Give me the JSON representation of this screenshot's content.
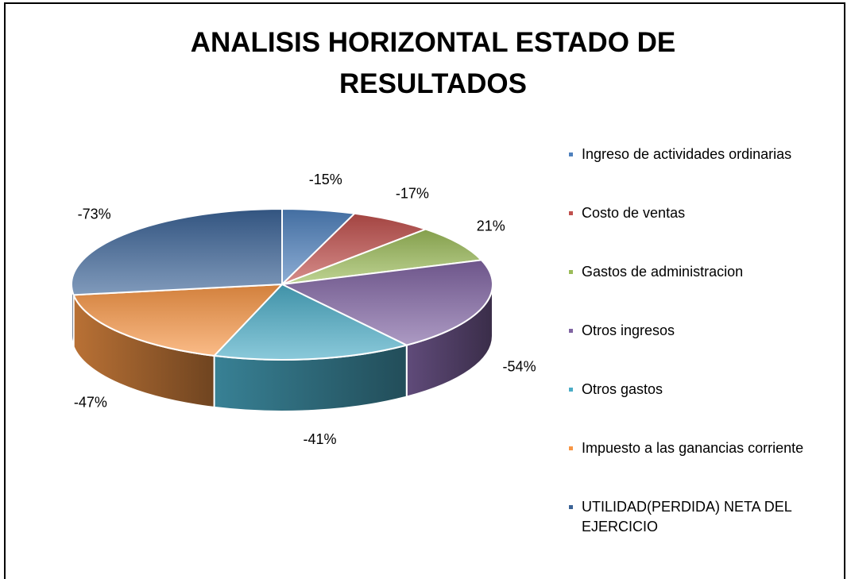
{
  "chart_data": {
    "type": "pie3d",
    "title": "ANALISIS HORIZONTAL ESTADO DE RESULTADOS",
    "categories": [
      "Ingreso de actividades ordinarias",
      "Costo de ventas",
      "Gastos de administracion",
      "Otros ingresos",
      "Otros gastos",
      "Impuesto a las ganancias corriente",
      "UTILIDAD(PERDIDA) NETA DEL EJERCICIO"
    ],
    "values": [
      -15,
      -17,
      21,
      -54,
      -41,
      -47,
      -73
    ],
    "value_labels": [
      "-15%",
      "-17%",
      "21%",
      "-54%",
      "-41%",
      "-47%",
      "-73%"
    ],
    "colors": [
      "#4f81bd",
      "#c0504d",
      "#9bbb59",
      "#8064a2",
      "#4bacc6",
      "#f79646",
      "#3b6396"
    ],
    "legend": "right"
  }
}
